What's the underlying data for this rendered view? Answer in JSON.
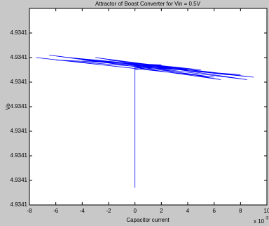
{
  "chart_data": {
    "type": "line",
    "title": "Attractor of Boost Converter for Vin = 0.5V",
    "x_label": "Capacitor current",
    "y_label": "Vo",
    "x_exponent": "x 10",
    "x_exponent_power": "-3",
    "x": [
      -7.5,
      6,
      -6.5,
      8.5,
      -3,
      7,
      -5,
      5,
      -2,
      9,
      -4,
      3,
      0,
      0,
      0,
      6.5,
      -1,
      4,
      0,
      0,
      0,
      2,
      -6,
      8
    ],
    "series": [
      {
        "name": "Vo",
        "color": "#0000ff",
        "values": [
          4.934106,
          4.9341052,
          4.9341061,
          4.9341051,
          4.934106,
          4.9341053,
          4.934106,
          4.9341055,
          4.9341059,
          4.9341052,
          4.9341059,
          4.9341056,
          4.9341057,
          4.934104,
          4.9341056,
          4.9341051,
          4.9341058,
          4.9341055,
          4.9341056,
          4.9341007,
          4.9341055,
          4.9341057,
          4.9341059,
          4.9341053
        ]
      }
    ],
    "xlim": [
      -8,
      10
    ],
    "xticks": [
      -8,
      -6,
      -4,
      -2,
      0,
      2,
      4,
      6,
      8,
      10
    ],
    "ylim": [
      4.9341,
      4.934108
    ],
    "yticks": [
      {
        "value": 4.9341,
        "label": "4.9341"
      },
      {
        "value": 4.934101,
        "label": "4.9341"
      },
      {
        "value": 4.934102,
        "label": "4.9341"
      },
      {
        "value": 4.934103,
        "label": "4.9341"
      },
      {
        "value": 4.934104,
        "label": "4.9341"
      },
      {
        "value": 4.934105,
        "label": "4.9341"
      },
      {
        "value": 4.934106,
        "label": "4.9341"
      },
      {
        "value": 4.934107,
        "label": "4.9341"
      }
    ]
  }
}
